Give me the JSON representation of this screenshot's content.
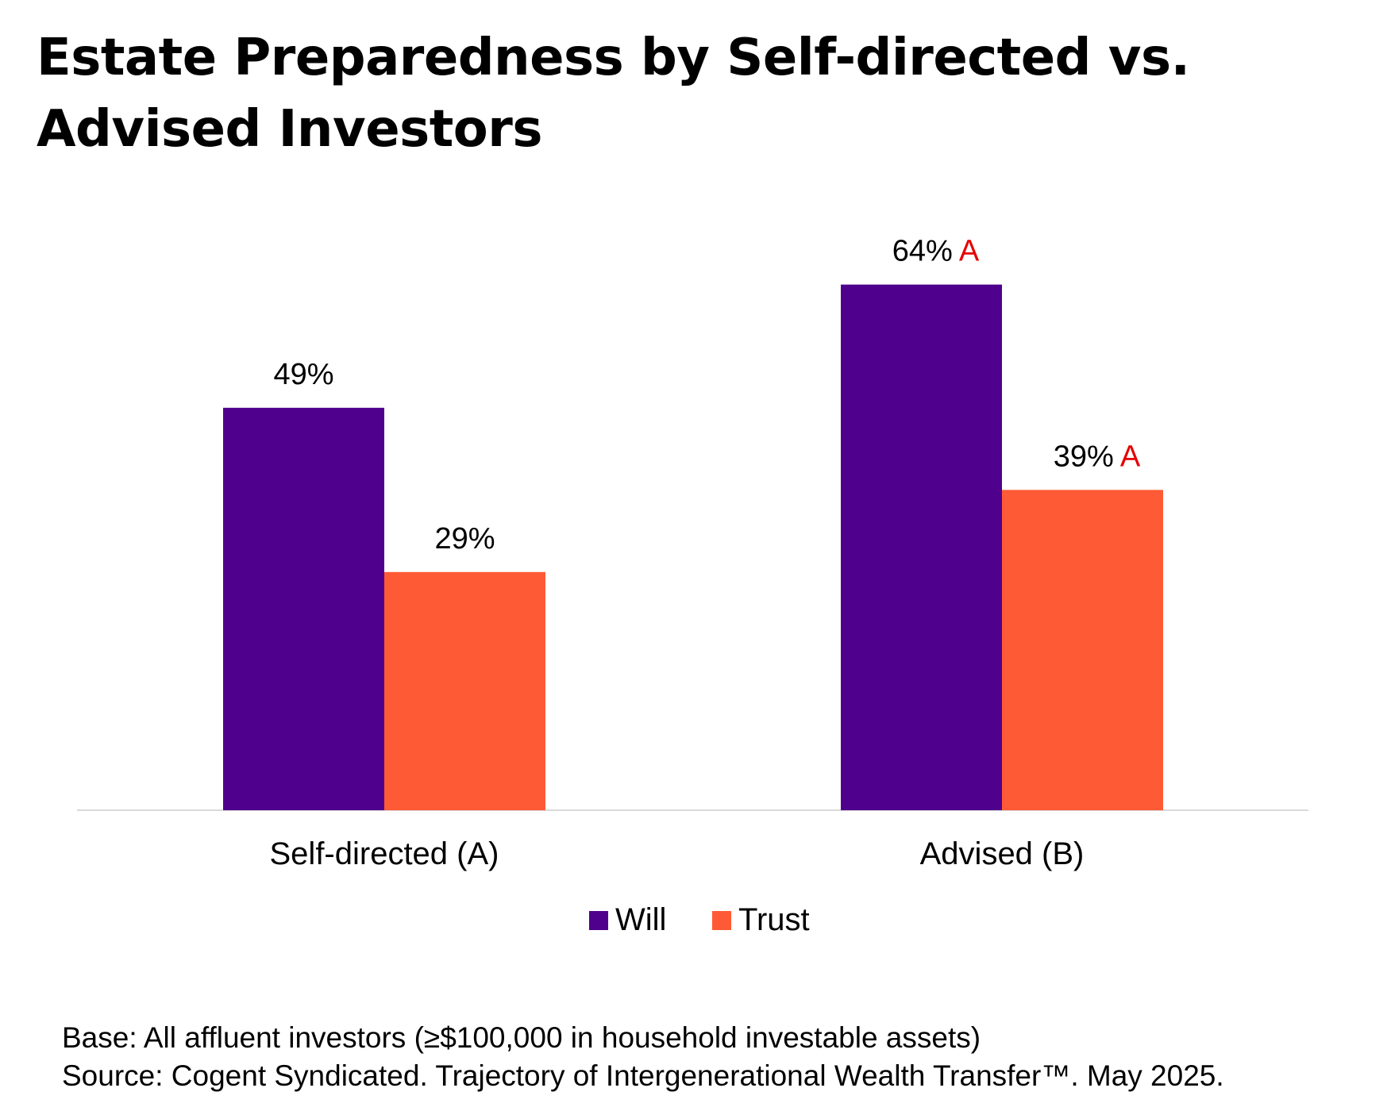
{
  "title": "Estate Preparedness by Self-directed vs. Advised Investors",
  "chart_data": {
    "type": "bar",
    "title": "Estate Preparedness by Self-directed vs. Advised Investors",
    "categories": [
      "Self-directed (A)",
      "Advised (B)"
    ],
    "series": [
      {
        "name": "Will",
        "values": [
          49,
          64
        ],
        "labels": [
          "49%",
          "64%"
        ],
        "sig": [
          "",
          "A"
        ],
        "color": "#4f008c"
      },
      {
        "name": "Trust",
        "values": [
          29,
          39
        ],
        "labels": [
          "29%",
          "39%"
        ],
        "sig": [
          "",
          "A"
        ],
        "color": "#ff5a36"
      }
    ],
    "sig_color": "#e60000",
    "axis_color": "#d9d9d9",
    "ylim": [
      0,
      70
    ],
    "grid": false,
    "legend": "bottom",
    "unit": "%"
  },
  "footnotes": {
    "base": "Base: All affluent investors (≥$100,000 in household investable assets)",
    "source": "Source: Cogent Syndicated. Trajectory of Intergenerational Wealth Transfer™. May 2025."
  }
}
